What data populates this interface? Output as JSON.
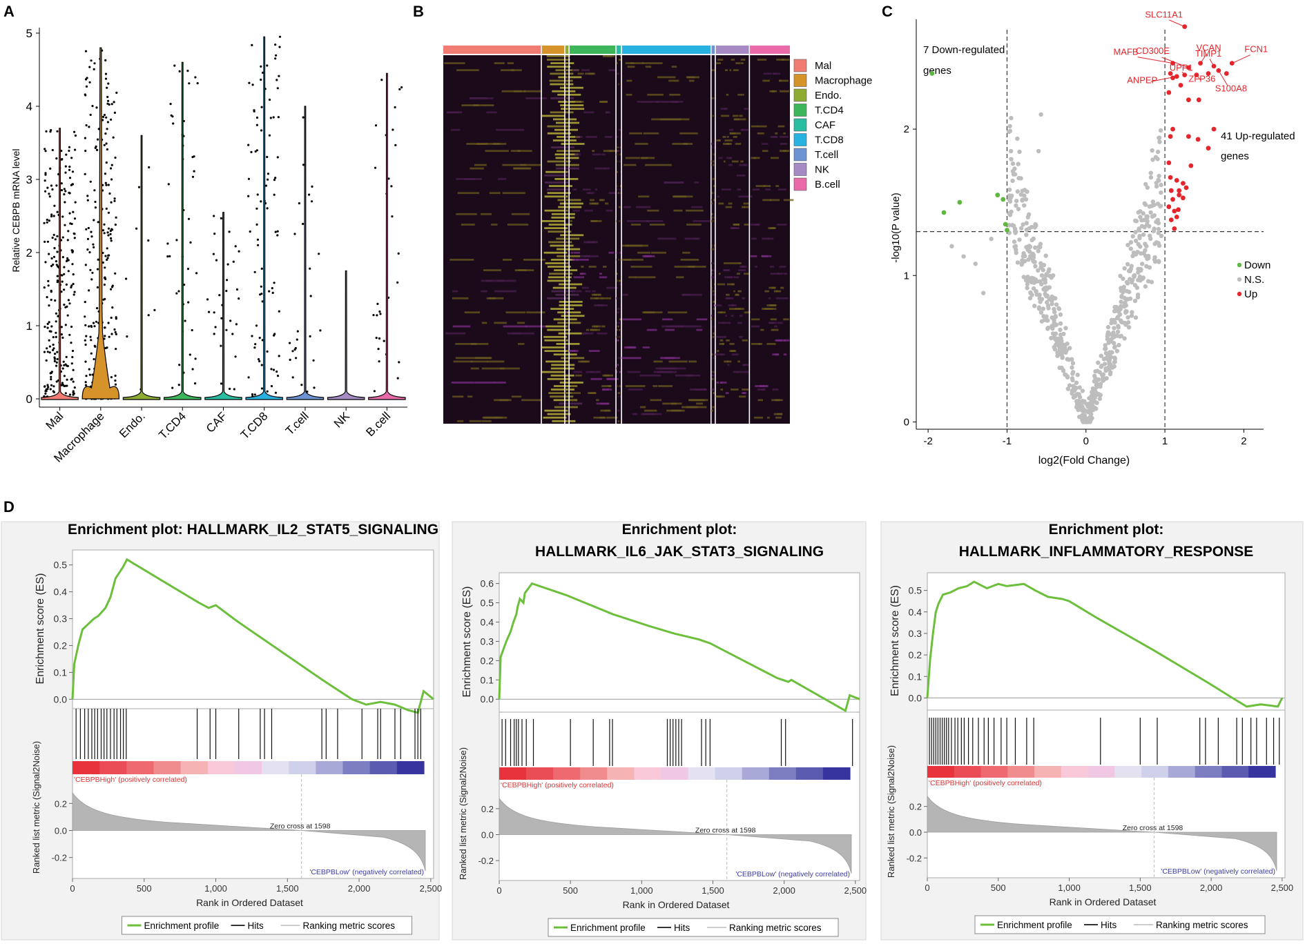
{
  "panel_labels": {
    "a": "A",
    "b": "B",
    "c": "C",
    "d": "D"
  },
  "colors": {
    "Mal": "#f07c74",
    "Macrophage": "#d6932a",
    "Endo.": "#8eab34",
    "T.CD4": "#3cb55b",
    "CAF": "#2bbda2",
    "T.CD8": "#29b1e2",
    "T.cell": "#6d93d3",
    "NK": "#a58ac4",
    "B.cell": "#e86aa9",
    "gsea_green": "#6cbf3a",
    "up_red": "#e4262c",
    "down_green": "#5cb83e",
    "ns_gray": "#bdbdbd"
  },
  "chart_data": [
    {
      "type": "violin",
      "panel": "A",
      "ylabel": "Relative CEBPB mRNA level",
      "ylim": [
        0,
        5
      ],
      "yticks": [
        "0",
        "1",
        "2",
        "3",
        "4",
        "5"
      ],
      "categories": [
        "Mal",
        "Macrophage",
        "Endo.",
        "T.CD4",
        "CAF",
        "T.CD8",
        "T.cell",
        "NK",
        "B.cell"
      ],
      "max_values": [
        3.7,
        4.8,
        3.6,
        4.6,
        2.55,
        4.95,
        4.0,
        1.75,
        4.45
      ],
      "point_density": [
        1.0,
        1.0,
        0.04,
        0.18,
        0.12,
        0.35,
        0.1,
        0.0,
        0.12
      ]
    },
    {
      "type": "heatmap",
      "panel": "B",
      "legend": [
        "Mal",
        "Macrophage",
        "Endo.",
        "T.CD4",
        "CAF",
        "T.CD8",
        "T.cell",
        "NK",
        "B.cell"
      ],
      "group_widths": [
        23,
        5.5,
        1,
        11,
        1.3,
        21,
        1,
        8,
        9.5
      ]
    },
    {
      "type": "scatter",
      "panel": "C",
      "xlabel": "log2(Fold Change)",
      "ylabel": "-log10(P value)",
      "xlim": [
        -2.15,
        2.25
      ],
      "ylim": [
        -0.05,
        2.75
      ],
      "xticks": [
        "-2",
        "-1",
        "0",
        "1",
        "2"
      ],
      "yticks": [
        "0",
        "1",
        "2"
      ],
      "thresholds": {
        "x": [
          -1,
          1
        ],
        "y": 1.3
      },
      "legend": [
        "Down",
        "N.S.",
        "Up"
      ],
      "annot_down": [
        "7 Down-regulated",
        "genes"
      ],
      "annot_up": [
        "41 Up-regulated",
        "genes"
      ],
      "down_points": [
        [
          -1.95,
          2.38
        ],
        [
          -1.8,
          1.43
        ],
        [
          -1.6,
          1.5
        ],
        [
          -1.12,
          1.55
        ],
        [
          -1.05,
          1.52
        ],
        [
          -1.02,
          1.35
        ],
        [
          -1.0,
          1.31
        ]
      ],
      "up_points": [
        [
          1.25,
          2.7
        ],
        [
          1.1,
          2.45
        ],
        [
          1.3,
          2.42
        ],
        [
          1.45,
          2.45
        ],
        [
          1.62,
          2.43
        ],
        [
          1.85,
          2.45
        ],
        [
          1.07,
          2.38
        ],
        [
          1.15,
          2.36
        ],
        [
          1.25,
          2.37
        ],
        [
          1.4,
          2.37
        ],
        [
          1.55,
          2.38
        ],
        [
          1.68,
          2.4
        ],
        [
          1.78,
          2.38
        ],
        [
          1.1,
          2.35
        ],
        [
          1.2,
          2.3
        ],
        [
          1.05,
          2.25
        ],
        [
          1.3,
          2.2
        ],
        [
          1.43,
          2.2
        ],
        [
          1.1,
          2.0
        ],
        [
          1.3,
          1.95
        ],
        [
          1.07,
          1.95
        ],
        [
          1.42,
          1.93
        ],
        [
          1.62,
          2.0
        ],
        [
          1.55,
          1.87
        ],
        [
          1.07,
          1.67
        ],
        [
          1.15,
          1.65
        ],
        [
          1.23,
          1.63
        ],
        [
          1.08,
          1.58
        ],
        [
          1.18,
          1.58
        ],
        [
          1.27,
          1.6
        ],
        [
          1.1,
          1.52
        ],
        [
          1.18,
          1.55
        ],
        [
          1.23,
          1.53
        ],
        [
          1.05,
          1.47
        ],
        [
          1.12,
          1.44
        ],
        [
          1.15,
          1.4
        ],
        [
          1.08,
          1.38
        ],
        [
          1.12,
          1.32
        ],
        [
          1.17,
          1.45
        ],
        [
          1.33,
          1.75
        ],
        [
          1.05,
          1.77
        ]
      ],
      "labels": [
        {
          "text": "SLC11A1",
          "x": 1.25,
          "y": 2.7
        },
        {
          "text": "VCAN",
          "x": 1.45,
          "y": 2.45
        },
        {
          "text": "TIMP1",
          "x": 1.62,
          "y": 2.43
        },
        {
          "text": "FCN1",
          "x": 1.85,
          "y": 2.45
        },
        {
          "text": "MAFB",
          "x": 1.1,
          "y": 2.45
        },
        {
          "text": "CD300E",
          "x": 1.3,
          "y": 2.42
        },
        {
          "text": "UPP1",
          "x": 1.25,
          "y": 2.37
        },
        {
          "text": "ANPEP",
          "x": 1.15,
          "y": 2.36
        },
        {
          "text": "ZFP36",
          "x": 1.4,
          "y": 2.37
        },
        {
          "text": "S100A8",
          "x": 1.68,
          "y": 2.4
        }
      ]
    },
    {
      "type": "line",
      "panel": "D1",
      "title_lines": [
        "Enrichment plot: HALLMARK_IL2_STAT5_SIGNALING"
      ],
      "ylabel": "Enrichment score (ES)",
      "ylim_es": [
        -0.03,
        0.53
      ],
      "es_ticks": [
        "0.0",
        "0.1",
        "0.2",
        "0.3",
        "0.4",
        "0.5"
      ],
      "es_curve": [
        [
          0,
          0
        ],
        [
          12,
          0.13
        ],
        [
          40,
          0.2
        ],
        [
          70,
          0.26
        ],
        [
          110,
          0.28
        ],
        [
          150,
          0.3
        ],
        [
          180,
          0.31
        ],
        [
          230,
          0.34
        ],
        [
          265,
          0.38
        ],
        [
          300,
          0.45
        ],
        [
          350,
          0.49
        ],
        [
          380,
          0.52
        ],
        [
          880,
          0.36
        ],
        [
          950,
          0.34
        ],
        [
          1000,
          0.35
        ],
        [
          1150,
          0.29
        ],
        [
          1750,
          0.07
        ],
        [
          1950,
          0.0
        ],
        [
          2050,
          -0.02
        ],
        [
          2150,
          -0.01
        ],
        [
          2250,
          -0.02
        ],
        [
          2340,
          -0.04
        ],
        [
          2410,
          -0.05
        ],
        [
          2450,
          0.03
        ],
        [
          2520,
          0.0
        ]
      ],
      "hits": [
        25,
        55,
        85,
        110,
        135,
        155,
        175,
        200,
        220,
        240,
        265,
        290,
        310,
        335,
        355,
        375,
        870,
        960,
        1000,
        1160,
        1310,
        1340,
        1390,
        1740,
        1770,
        1850,
        2020,
        2130,
        2150,
        2250,
        2290,
        2390,
        2410,
        2430
      ],
      "xlim": [
        0,
        2520
      ],
      "xticks": [
        "0",
        "500",
        "1,000",
        "1,500",
        "2,000",
        "2,500"
      ],
      "rank_ylabel": "Ranked list metric (Signal2Noise)",
      "rank_ticks": [
        "-0.2",
        "0.0",
        "0.2"
      ],
      "xlabel": "Rank in Ordered Dataset",
      "pos_label": "'CEBPBHigh' (positively correlated)",
      "neg_label": "'CEBPBLow' (negatively correlated)",
      "zero_cross": "Zero cross at 1598",
      "zero_cross_rank": 1598,
      "legend": [
        "Enrichment profile",
        "Hits",
        "Ranking metric scores"
      ]
    },
    {
      "type": "line",
      "panel": "D2",
      "title_lines": [
        "Enrichment plot:",
        "HALLMARK_IL6_JAK_STAT3_SIGNALING"
      ],
      "ylabel": "Enrichment score (ES)",
      "ylim_es": [
        -0.06,
        0.62
      ],
      "es_ticks": [
        "0.0",
        "0.1",
        "0.2",
        "0.3",
        "0.4",
        "0.5",
        "0.6"
      ],
      "es_curve": [
        [
          0,
          0
        ],
        [
          10,
          0.22
        ],
        [
          50,
          0.3
        ],
        [
          80,
          0.35
        ],
        [
          100,
          0.4
        ],
        [
          120,
          0.44
        ],
        [
          130,
          0.48
        ],
        [
          145,
          0.52
        ],
        [
          170,
          0.5
        ],
        [
          180,
          0.55
        ],
        [
          230,
          0.6
        ],
        [
          470,
          0.54
        ],
        [
          800,
          0.44
        ],
        [
          1050,
          0.38
        ],
        [
          1230,
          0.34
        ],
        [
          1400,
          0.31
        ],
        [
          1480,
          0.29
        ],
        [
          1950,
          0.11
        ],
        [
          2030,
          0.09
        ],
        [
          2050,
          0.1
        ],
        [
          2430,
          -0.06
        ],
        [
          2460,
          0.02
        ],
        [
          2530,
          0.0
        ]
      ],
      "hits": [
        20,
        45,
        80,
        105,
        120,
        135,
        160,
        190,
        240,
        500,
        660,
        775,
        795,
        1180,
        1200,
        1220,
        1240,
        1260,
        1280,
        1420,
        1450,
        1480,
        1980,
        2010,
        2480
      ],
      "xlim": [
        0,
        2530
      ],
      "xticks": [
        "0",
        "500",
        "1,000",
        "1,500",
        "2,000",
        "2,500"
      ],
      "rank_ylabel": "Ranked list metric (Signal2Noise)",
      "rank_ticks": [
        "-0.2",
        "0.0",
        "0.2"
      ],
      "xlabel": "Rank in Ordered Dataset",
      "pos_label": "'CEBPBHigh' (positively correlated)",
      "neg_label": "'CEBPBLow' (negatively correlated)",
      "zero_cross": "Zero cross at 1598",
      "zero_cross_rank": 1598,
      "legend": [
        "Enrichment profile",
        "Hits",
        "Ranking metric scores"
      ]
    },
    {
      "type": "line",
      "panel": "D3",
      "title_lines": [
        "Enrichment plot:",
        "HALLMARK_INFLAMMATORY_RESPONSE"
      ],
      "ylabel": "Enrichment score (ES)",
      "ylim_es": [
        -0.05,
        0.55
      ],
      "es_ticks": [
        "0.0",
        "0.1",
        "0.2",
        "0.3",
        "0.4",
        "0.5"
      ],
      "es_curve": [
        [
          0,
          0
        ],
        [
          20,
          0.18
        ],
        [
          40,
          0.3
        ],
        [
          60,
          0.4
        ],
        [
          80,
          0.44
        ],
        [
          110,
          0.48
        ],
        [
          160,
          0.49
        ],
        [
          220,
          0.51
        ],
        [
          280,
          0.52
        ],
        [
          330,
          0.54
        ],
        [
          420,
          0.51
        ],
        [
          500,
          0.53
        ],
        [
          560,
          0.52
        ],
        [
          680,
          0.53
        ],
        [
          760,
          0.5
        ],
        [
          850,
          0.47
        ],
        [
          950,
          0.46
        ],
        [
          1000,
          0.45
        ],
        [
          1200,
          0.37
        ],
        [
          1600,
          0.22
        ],
        [
          1980,
          0.07
        ],
        [
          2150,
          0.0
        ],
        [
          2250,
          -0.04
        ],
        [
          2350,
          -0.03
        ],
        [
          2470,
          -0.04
        ],
        [
          2500,
          0.0
        ]
      ],
      "hits": [
        15,
        30,
        45,
        60,
        75,
        90,
        105,
        120,
        135,
        150,
        170,
        195,
        215,
        240,
        260,
        290,
        320,
        360,
        400,
        430,
        470,
        520,
        560,
        620,
        700,
        750,
        1220,
        1500,
        1620,
        1920,
        1960,
        2050,
        2180,
        2220,
        2280,
        2320,
        2390,
        2440,
        2480
      ],
      "xlim": [
        0,
        2520
      ],
      "xticks": [
        "0",
        "500",
        "1,000",
        "1,500",
        "2,000",
        "2,500"
      ],
      "rank_ylabel": "Ranked list metric (Signal2Noise)",
      "rank_ticks": [
        "-0.2",
        "0.0",
        "0.2"
      ],
      "xlabel": "Rank in Ordered Dataset",
      "pos_label": "'CEBPBHigh' (positively correlated)",
      "neg_label": "'CEBPBLow' (negatively correlated)",
      "zero_cross": "Zero cross at 1598",
      "zero_cross_rank": 1598,
      "legend": [
        "Enrichment profile",
        "Hits",
        "Ranking metric scores"
      ]
    }
  ]
}
